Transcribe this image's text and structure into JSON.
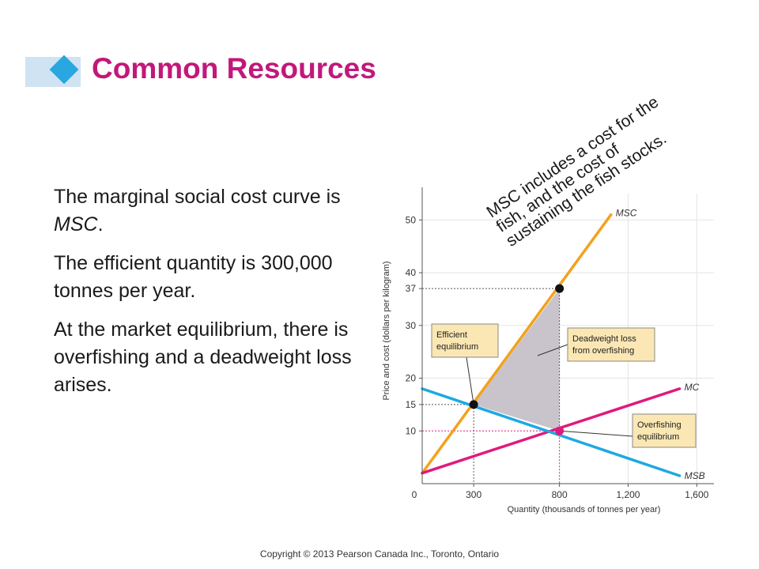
{
  "title": "Common Resources",
  "paragraphs": [
    {
      "pre": "The marginal social cost curve is ",
      "em": "MSC",
      "post": "."
    },
    {
      "text": "The efficient quantity is 300,000 tonnes per year."
    },
    {
      "text": "At the market equilibrium, there is overfishing and a deadweight loss arises."
    }
  ],
  "callout": [
    "MSC includes a cost for the",
    "fish, and the cost of",
    "sustaining the fish stocks."
  ],
  "copyright": "Copyright © 2013 Pearson Canada Inc., Toronto, Ontario",
  "colors": {
    "title": "#c2187a",
    "msc": "#f2a21c",
    "mc": "#e0197e",
    "msb": "#1da9e1",
    "deadweight": "#c9c4cb",
    "box": "#fbe7b4"
  },
  "chart_data": {
    "type": "line",
    "xlabel": "Quantity (thousands of tonnes per year)",
    "ylabel": "Price and cost (dollars per kilogram)",
    "xlim": [
      0,
      1700
    ],
    "ylim": [
      0,
      55
    ],
    "x_ticks": [
      {
        "value": 0,
        "label": "0"
      },
      {
        "value": 300,
        "label": "300"
      },
      {
        "value": 800,
        "label": "800",
        "highlight": true
      },
      {
        "value": 1200,
        "label": "1,200"
      },
      {
        "value": 1600,
        "label": "1,600"
      }
    ],
    "y_ticks": [
      {
        "value": 10,
        "label": "10",
        "highlight": true
      },
      {
        "value": 15,
        "label": "15"
      },
      {
        "value": 20,
        "label": "20"
      },
      {
        "value": 30,
        "label": "30"
      },
      {
        "value": 37,
        "label": "37"
      },
      {
        "value": 40,
        "label": "40"
      },
      {
        "value": 50,
        "label": "50"
      }
    ],
    "series": [
      {
        "name": "MSC",
        "color": "#f2a21c",
        "points": [
          [
            0,
            2
          ],
          [
            1100,
            51
          ]
        ]
      },
      {
        "name": "MC",
        "color": "#e0197e",
        "points": [
          [
            0,
            2
          ],
          [
            1500,
            18
          ]
        ]
      },
      {
        "name": "MSB",
        "color": "#1da9e1",
        "points": [
          [
            0,
            18
          ],
          [
            1500,
            1.5
          ]
        ]
      }
    ],
    "points": [
      {
        "name": "efficient",
        "x": 300,
        "y": 15,
        "color": "#111111"
      },
      {
        "name": "msc-at-800",
        "x": 800,
        "y": 37,
        "color": "#111111"
      },
      {
        "name": "overfishing",
        "x": 800,
        "y": 10,
        "color": "#e0197e"
      }
    ],
    "deadweight_loss": [
      [
        300,
        15
      ],
      [
        800,
        37
      ],
      [
        800,
        10
      ]
    ],
    "annotations": [
      {
        "name": "efficient-equilibrium",
        "lines": [
          "Efficient",
          "equilibrium"
        ]
      },
      {
        "name": "deadweight-loss",
        "lines": [
          "Deadweight loss",
          "from overfishing"
        ]
      },
      {
        "name": "overfishing-equilibrium",
        "lines": [
          "Overfishing",
          "equilibrium"
        ]
      }
    ]
  }
}
